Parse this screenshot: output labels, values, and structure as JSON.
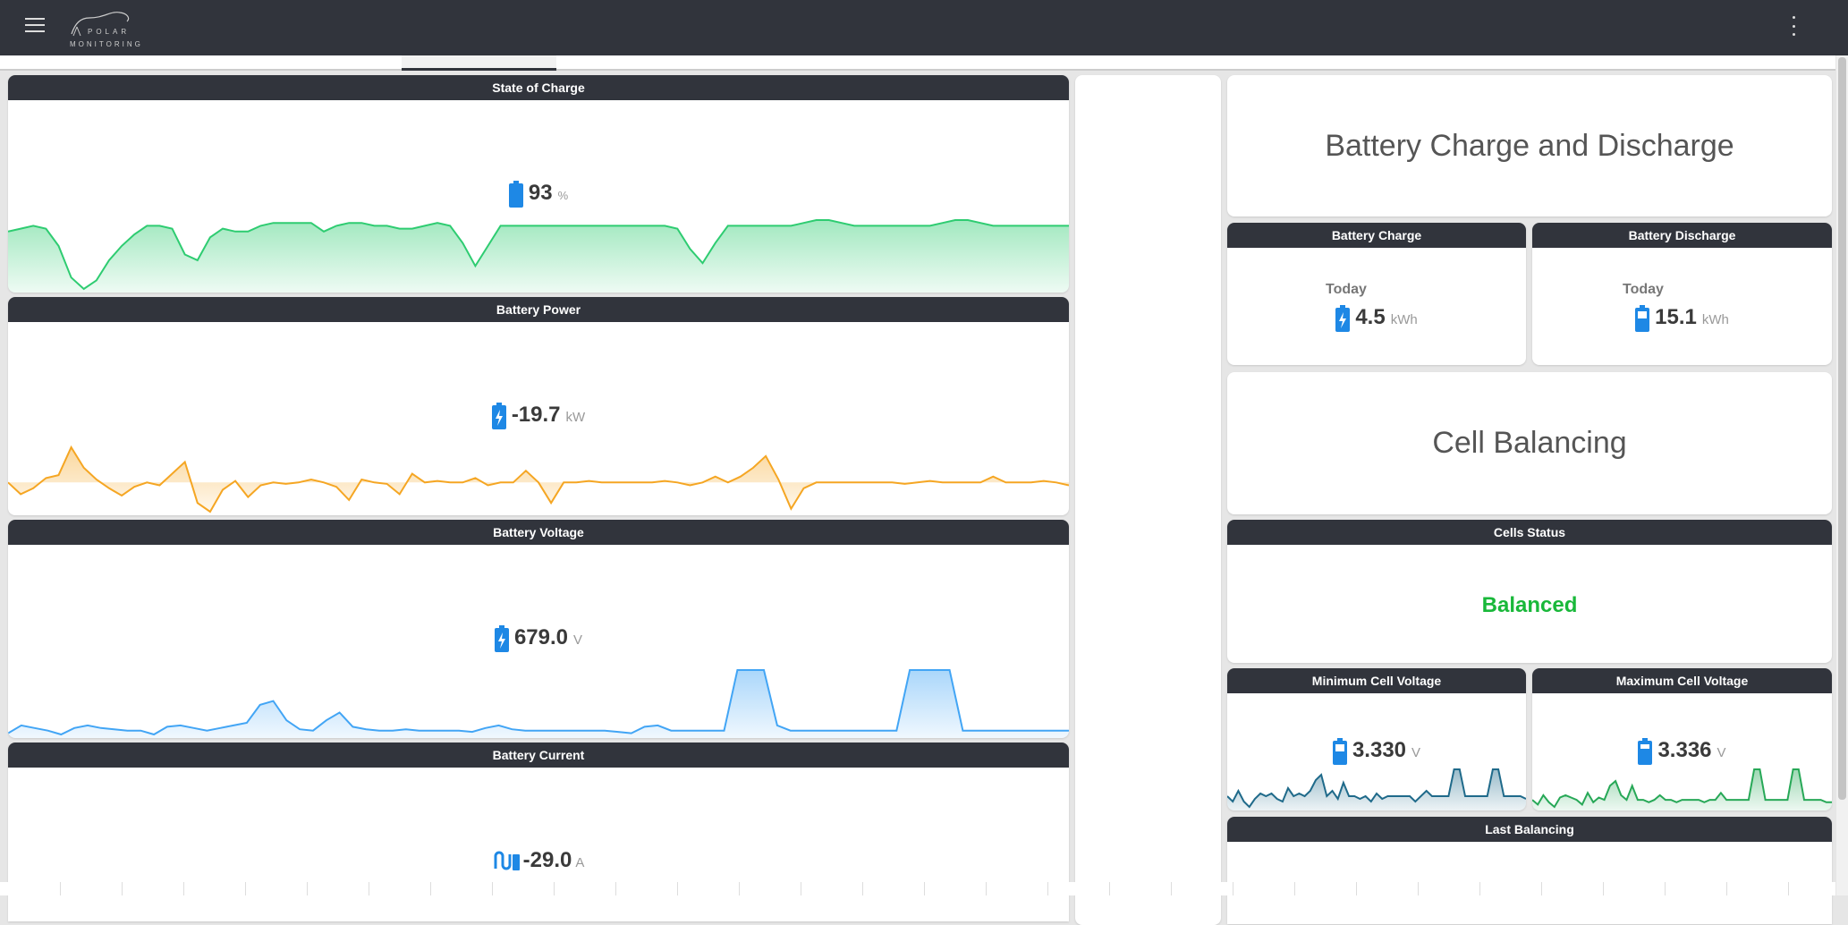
{
  "app": {
    "logo_text": [
      "POLAR",
      "MONITORING"
    ]
  },
  "icons": {
    "menu": "hamburger-icon",
    "more": "kebab-vertical-icon",
    "battery": "battery-icon",
    "battery_charging": "battery-charging-icon",
    "current": "battery-current-icon"
  },
  "colors": {
    "header": "#31343c",
    "accent": "#1e88e5",
    "soc": "#2ecc71",
    "power": "#f5a623",
    "voltage": "#42a5f5",
    "min_cell": "#1f6a8a",
    "max_cell": "#27a857",
    "balanced": "#19b83a"
  },
  "left": {
    "soc": {
      "title": "State of Charge",
      "value": "93",
      "unit": "%",
      "series": [
        90,
        91,
        92,
        91,
        85,
        74,
        70,
        73,
        80,
        85,
        89,
        92,
        92,
        91,
        82,
        80,
        88,
        91,
        90,
        90,
        92,
        93,
        93,
        93,
        93,
        90,
        92,
        93,
        93,
        92,
        92,
        91,
        91,
        92,
        93,
        92,
        86,
        78,
        85,
        92,
        92,
        92,
        92,
        92,
        92,
        92,
        92,
        92,
        92,
        92,
        92,
        92,
        92,
        91,
        84,
        79,
        86,
        92,
        92,
        92,
        92,
        92,
        92,
        93,
        94,
        94,
        93,
        92,
        92,
        92,
        92,
        92,
        92,
        92,
        93,
        94,
        94,
        93,
        92,
        92,
        92,
        92,
        92,
        92,
        92
      ]
    },
    "power": {
      "title": "Battery Power",
      "value": "-19.7",
      "unit": "kW",
      "series": [
        0,
        -8,
        -4,
        3,
        5,
        24,
        10,
        2,
        -4,
        -9,
        -3,
        0,
        -2,
        6,
        14,
        -14,
        -20,
        -5,
        1,
        -10,
        -2,
        0,
        -1,
        0,
        2,
        0,
        -3,
        -12,
        2,
        0,
        -1,
        -8,
        6,
        0,
        1,
        0,
        0,
        3,
        -2,
        0,
        0,
        8,
        0,
        -14,
        0,
        0,
        1,
        0,
        0,
        0,
        0,
        0,
        1,
        0,
        -2,
        0,
        4,
        0,
        4,
        10,
        18,
        2,
        -18,
        -4,
        0,
        0,
        0,
        0,
        0,
        0,
        0,
        -1,
        0,
        1,
        0,
        0,
        0,
        0,
        4,
        0,
        0,
        0,
        1,
        0,
        -2
      ]
    },
    "voltage": {
      "title": "Battery Voltage",
      "value": "679.0",
      "unit": "V",
      "series": [
        650,
        656,
        654,
        652,
        649,
        654,
        656,
        654,
        653,
        652,
        652,
        649,
        655,
        656,
        654,
        652,
        654,
        656,
        658,
        672,
        675,
        660,
        653,
        652,
        660,
        666,
        655,
        653,
        652,
        652,
        653,
        652,
        652,
        652,
        652,
        651,
        654,
        656,
        653,
        652,
        652,
        652,
        652,
        652,
        652,
        652,
        651,
        650,
        655,
        656,
        652,
        652,
        652,
        652,
        652,
        699,
        699,
        699,
        656,
        652,
        652,
        652,
        652,
        652,
        652,
        652,
        652,
        652,
        699,
        699,
        699,
        699,
        652,
        652,
        652,
        652,
        652,
        652,
        652,
        652,
        652
      ]
    },
    "current": {
      "title": "Battery Current",
      "value": "-29.0",
      "unit": "A"
    }
  },
  "right": {
    "charge_discharge_title": "Battery Charge and Discharge",
    "charge": {
      "title": "Battery Charge",
      "period": "Today",
      "value": "4.5",
      "unit": "kWh"
    },
    "discharge": {
      "title": "Battery Discharge",
      "period": "Today",
      "value": "15.1",
      "unit": "kWh"
    },
    "cell_balancing_title": "Cell Balancing",
    "cells_status": {
      "title": "Cells Status",
      "value": "Balanced"
    },
    "min_cell": {
      "title": "Minimum Cell Voltage",
      "value": "3.330",
      "unit": "V",
      "series": [
        3.318,
        3.316,
        3.32,
        3.316,
        3.314,
        3.317,
        3.319,
        3.318,
        3.319,
        3.317,
        3.316,
        3.321,
        3.318,
        3.319,
        3.318,
        3.32,
        3.324,
        3.326,
        3.318,
        3.32,
        3.317,
        3.323,
        3.318,
        3.318,
        3.317,
        3.318,
        3.316,
        3.319,
        3.317,
        3.318,
        3.318,
        3.318,
        3.318,
        3.318,
        3.316,
        3.318,
        3.32,
        3.318,
        3.318,
        3.318,
        3.318,
        3.328,
        3.328,
        3.318,
        3.318,
        3.318,
        3.318,
        3.318,
        3.328,
        3.328,
        3.318,
        3.318,
        3.318,
        3.318,
        3.317
      ]
    },
    "max_cell": {
      "title": "Maximum Cell Voltage",
      "value": "3.336",
      "unit": "V",
      "series": [
        3.324,
        3.322,
        3.326,
        3.323,
        3.321,
        3.325,
        3.326,
        3.325,
        3.324,
        3.322,
        3.327,
        3.323,
        3.325,
        3.324,
        3.33,
        3.332,
        3.326,
        3.324,
        3.33,
        3.324,
        3.324,
        3.323,
        3.324,
        3.326,
        3.324,
        3.324,
        3.323,
        3.324,
        3.324,
        3.324,
        3.324,
        3.323,
        3.324,
        3.324,
        3.327,
        3.324,
        3.324,
        3.324,
        3.324,
        3.324,
        3.337,
        3.337,
        3.324,
        3.324,
        3.324,
        3.324,
        3.324,
        3.337,
        3.337,
        3.324,
        3.324,
        3.324,
        3.324,
        3.323,
        3.323
      ]
    },
    "last_balancing": {
      "title": "Last Balancing"
    }
  }
}
